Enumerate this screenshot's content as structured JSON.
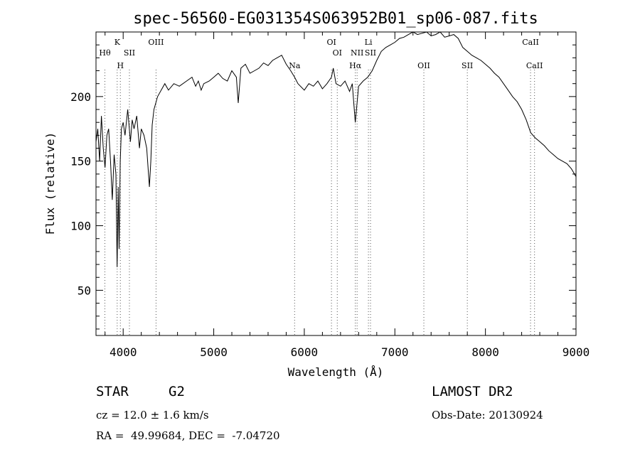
{
  "chart_data": {
    "type": "line",
    "title": "spec-56560-EG031354S063952B01_sp06-087.fits",
    "xlabel": "Wavelength (Å)",
    "ylabel": "Flux (relative)",
    "xlim": [
      3700,
      9000
    ],
    "ylim": [
      15,
      250
    ],
    "xticks": [
      4000,
      5000,
      6000,
      7000,
      8000,
      9000
    ],
    "yticks": [
      50,
      100,
      150,
      200
    ],
    "grid": false,
    "series": [
      {
        "x": [
          3700,
          3720,
          3740,
          3760,
          3780,
          3800,
          3820,
          3840,
          3860,
          3880,
          3900,
          3920,
          3933,
          3945,
          3955,
          3968,
          3980,
          4000,
          4020,
          4050,
          4080,
          4100,
          4120,
          4150,
          4180,
          4200,
          4230,
          4260,
          4290,
          4305,
          4320,
          4340,
          4380,
          4420,
          4460,
          4500,
          4560,
          4620,
          4700,
          4760,
          4800,
          4830,
          4861,
          4890,
          4950,
          5000,
          5050,
          5100,
          5150,
          5200,
          5250,
          5270,
          5300,
          5350,
          5400,
          5450,
          5500,
          5550,
          5600,
          5650,
          5700,
          5750,
          5800,
          5850,
          5893,
          5930,
          6000,
          6050,
          6100,
          6150,
          6200,
          6250,
          6300,
          6320,
          6350,
          6400,
          6450,
          6500,
          6530,
          6563,
          6600,
          6650,
          6700,
          6750,
          6800,
          6850,
          6900,
          6950,
          7000,
          7050,
          7100,
          7150,
          7200,
          7250,
          7300,
          7350,
          7400,
          7450,
          7500,
          7550,
          7600,
          7650,
          7700,
          7750,
          7800,
          7850,
          7900,
          7950,
          8000,
          8050,
          8100,
          8150,
          8200,
          8250,
          8300,
          8350,
          8400,
          8450,
          8500,
          8550,
          8600,
          8650,
          8700,
          8750,
          8800,
          8850,
          8900,
          8950,
          9000
        ],
        "y": [
          165,
          175,
          150,
          185,
          160,
          145,
          170,
          175,
          150,
          120,
          155,
          140,
          68,
          130,
          82,
          150,
          175,
          180,
          170,
          190,
          165,
          182,
          175,
          185,
          160,
          175,
          170,
          160,
          130,
          150,
          178,
          190,
          200,
          205,
          210,
          205,
          210,
          208,
          212,
          215,
          208,
          212,
          205,
          210,
          212,
          215,
          218,
          214,
          212,
          220,
          215,
          195,
          222,
          225,
          218,
          220,
          222,
          226,
          224,
          228,
          230,
          232,
          225,
          220,
          215,
          210,
          205,
          210,
          208,
          212,
          206,
          210,
          215,
          222,
          210,
          208,
          212,
          204,
          210,
          180,
          208,
          212,
          215,
          220,
          228,
          235,
          238,
          240,
          242,
          245,
          246,
          248,
          250,
          248,
          249,
          250,
          247,
          248,
          250,
          246,
          247,
          248,
          245,
          238,
          235,
          232,
          230,
          228,
          225,
          222,
          218,
          215,
          210,
          205,
          200,
          196,
          190,
          182,
          172,
          168,
          165,
          162,
          158,
          155,
          152,
          150,
          148,
          144,
          138
        ]
      }
    ],
    "line_markers": [
      {
        "label": "Hθ",
        "wavelength": 3798,
        "row": "upper"
      },
      {
        "label": "K",
        "wavelength": 3934,
        "row": "top"
      },
      {
        "label": "H",
        "wavelength": 3969,
        "row": "lower"
      },
      {
        "label": "SII",
        "wavelength": 4069,
        "row": "upper"
      },
      {
        "label": "OIII",
        "wavelength": 4363,
        "row": "top"
      },
      {
        "label": "Na",
        "wavelength": 5893,
        "row": "lowest"
      },
      {
        "label": "OI",
        "wavelength": 6300,
        "row": "top"
      },
      {
        "label": "OI",
        "wavelength": 6364,
        "row": "upper"
      },
      {
        "label": "Hα",
        "wavelength": 6563,
        "row": "lower"
      },
      {
        "label": "NII",
        "wavelength": 6583,
        "row": "upper"
      },
      {
        "label": "Li",
        "wavelength": 6708,
        "row": "top"
      },
      {
        "label": "SII",
        "wavelength": 6731,
        "row": "upper"
      },
      {
        "label": "OII",
        "wavelength": 7320,
        "row": "lower"
      },
      {
        "label": "SII",
        "wavelength": 7800,
        "row": "lower"
      },
      {
        "label": "CaII",
        "wavelength": 8498,
        "row": "top"
      },
      {
        "label": "CaII",
        "wavelength": 8542,
        "row": "lower"
      }
    ]
  },
  "info": {
    "class": "STAR",
    "subclass": "G2",
    "survey": "LAMOST DR2",
    "cz": "cz = 12.0 ± 1.6 km/s",
    "obs_date": "Obs-Date: 20130924",
    "radec": "RA =  49.99684, DEC =  -7.04720"
  },
  "colors": {
    "foreground": "#000000",
    "background": "#ffffff"
  }
}
